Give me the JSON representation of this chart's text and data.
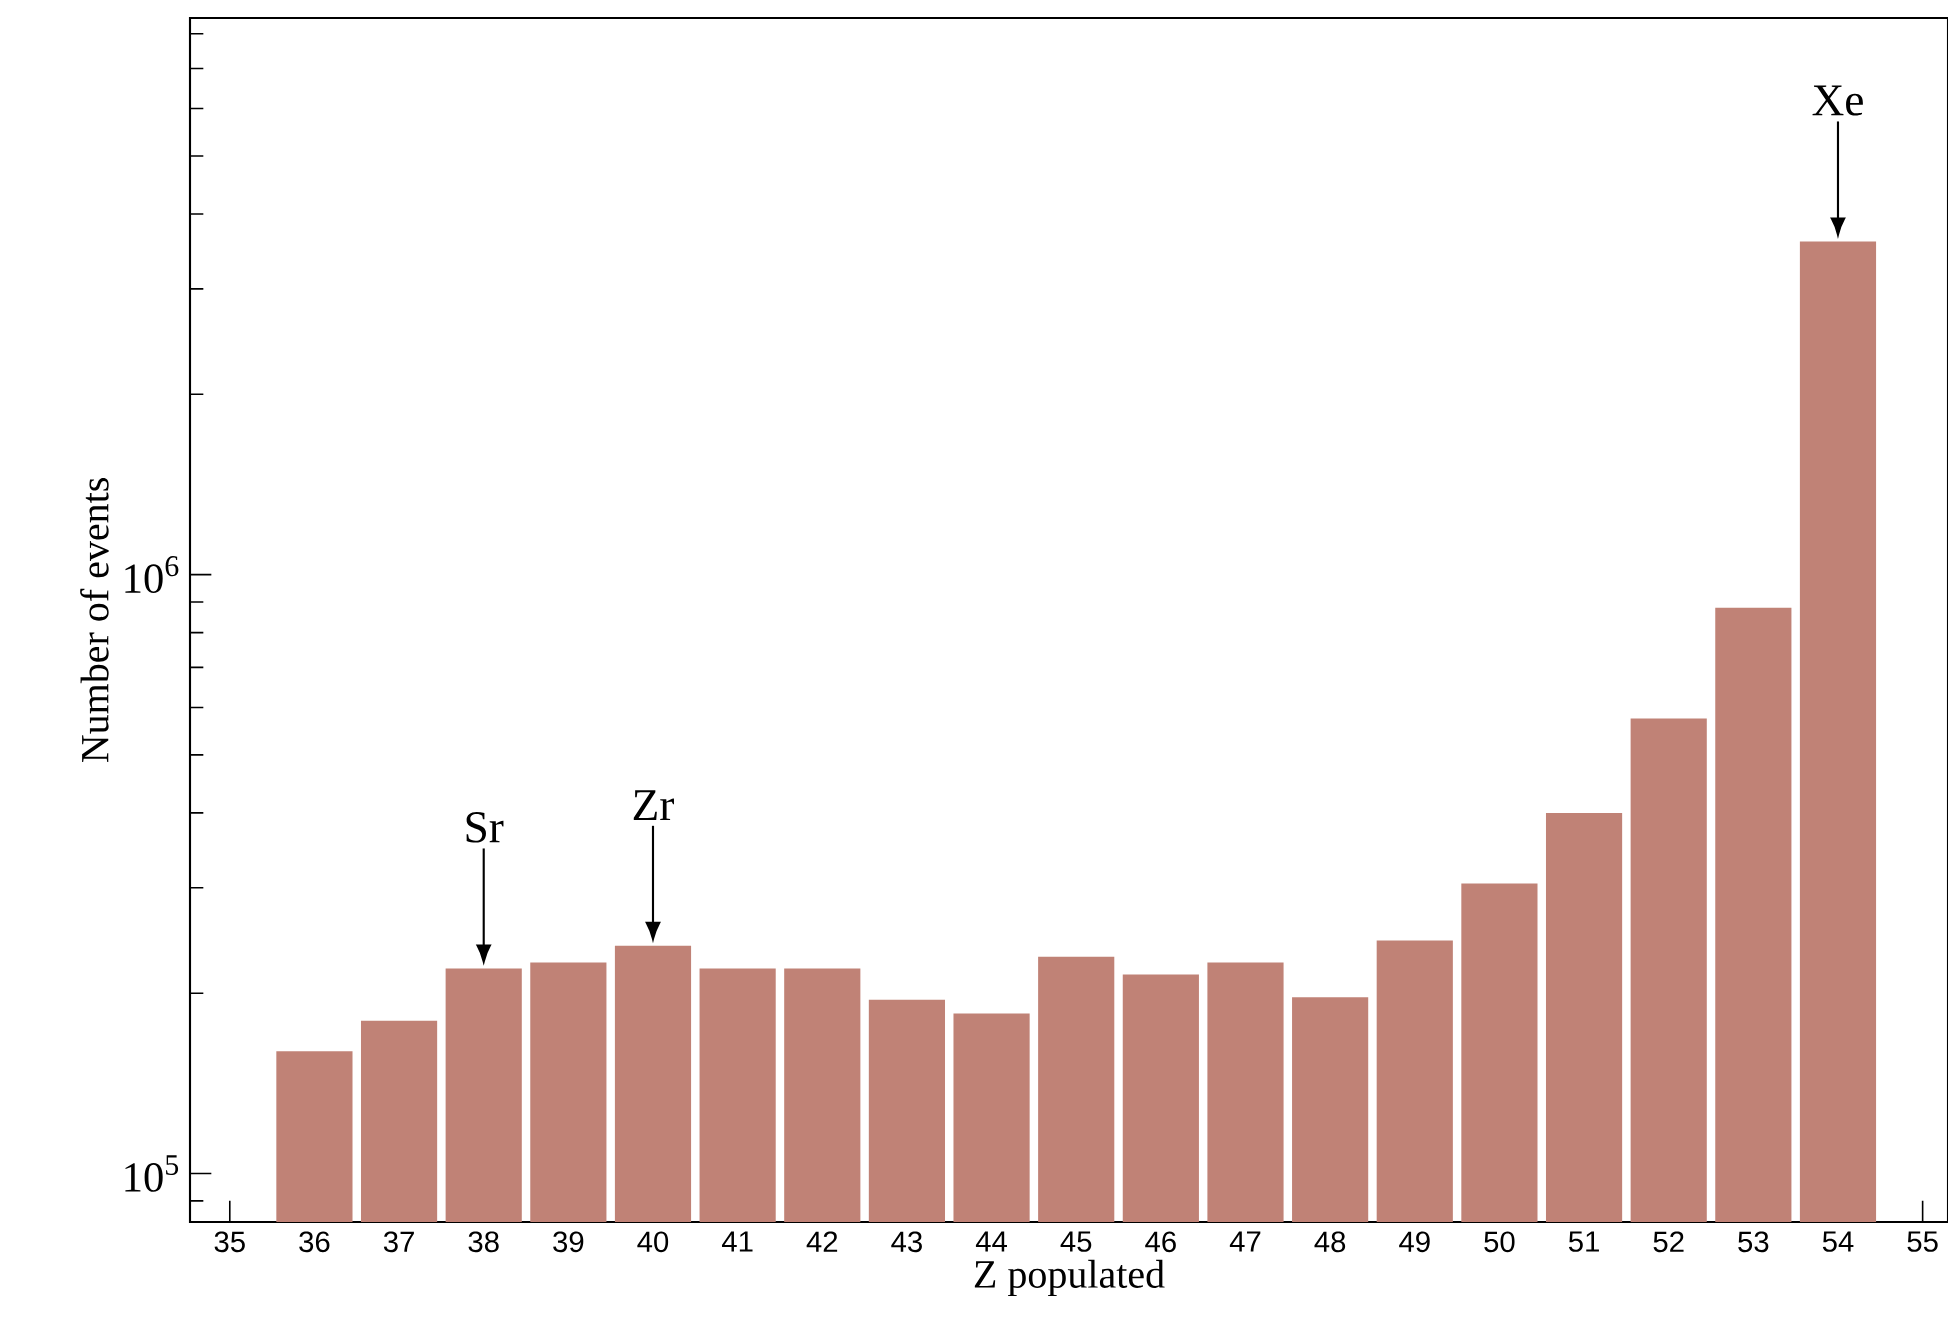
{
  "chart_data": {
    "type": "bar",
    "xlabel": "Z populated",
    "ylabel": "Number of events",
    "x": [
      36,
      37,
      38,
      39,
      40,
      41,
      42,
      43,
      44,
      45,
      46,
      47,
      48,
      49,
      50,
      51,
      52,
      53,
      54
    ],
    "values": [
      160000,
      180000,
      220000,
      225000,
      240000,
      220000,
      220000,
      195000,
      185000,
      230000,
      215000,
      225000,
      197000,
      245000,
      305000,
      400000,
      575000,
      880000,
      3600000
    ],
    "color": "#c08276",
    "log": "y",
    "xlim": [
      34.53,
      55.3
    ],
    "ylim": [
      83000,
      8500000
    ],
    "xticks": [
      35,
      36,
      37,
      38,
      39,
      40,
      41,
      42,
      43,
      44,
      45,
      46,
      47,
      48,
      49,
      50,
      51,
      52,
      53,
      54,
      55
    ],
    "yticks": [
      {
        "value": 100000,
        "label": "10$^{5}$"
      },
      {
        "value": 1000000,
        "label": "10$^{6}$"
      }
    ],
    "annotations": [
      {
        "text": "Sr",
        "x": 38,
        "y": 220000
      },
      {
        "text": "Zr",
        "x": 40,
        "y": 240000
      },
      {
        "text": "Xe",
        "x": 54,
        "y": 3600000
      }
    ]
  }
}
